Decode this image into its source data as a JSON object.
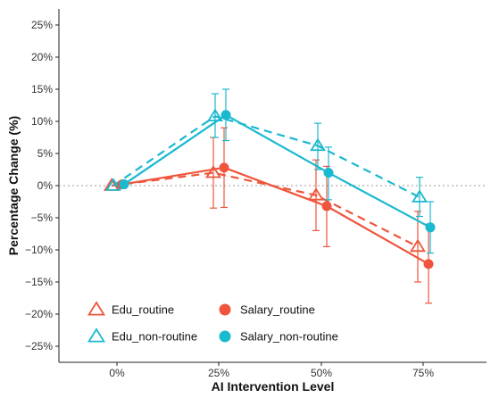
{
  "chart_data": {
    "type": "line",
    "xlabel": "AI Intervention Level",
    "ylabel": "Percentage Change (%)",
    "categories": [
      "0%",
      "25%",
      "50%",
      "75%"
    ],
    "y_ticks": [
      {
        "value": 25,
        "label": "25%"
      },
      {
        "value": 20,
        "label": "20%"
      },
      {
        "value": 15,
        "label": "15%"
      },
      {
        "value": 10,
        "label": "10%"
      },
      {
        "value": 5,
        "label": "5%"
      },
      {
        "value": 0,
        "label": "0%"
      },
      {
        "value": -5,
        "label": "−5%"
      },
      {
        "value": -10,
        "label": "−10%"
      },
      {
        "value": -15,
        "label": "−15%"
      },
      {
        "value": -20,
        "label": "−20%"
      },
      {
        "value": -25,
        "label": "−25%"
      }
    ],
    "ylim": [
      -27.5,
      27.5
    ],
    "grid": false,
    "reference_line": 0,
    "legend_position": "bottom-left",
    "series": [
      {
        "name": "Edu_routine",
        "color": "#ef553c",
        "marker": "open-triangle",
        "line": "dashed",
        "values": [
          0,
          2.0,
          -1.5,
          -9.5
        ],
        "error_low": [
          0,
          -3.5,
          -7.0,
          -15.0
        ],
        "error_high": [
          0,
          7.5,
          4.0,
          -4.0
        ]
      },
      {
        "name": "Edu_non-routine",
        "color": "#1ab9cf",
        "marker": "open-triangle",
        "line": "dashed",
        "values": [
          0,
          10.8,
          6.2,
          -1.8
        ],
        "error_low": [
          0,
          7.5,
          2.5,
          -4.8
        ],
        "error_high": [
          0,
          14.3,
          9.7,
          1.3
        ]
      },
      {
        "name": "Salary_routine",
        "color": "#ef553c",
        "marker": "filled-circle",
        "line": "solid",
        "values": [
          0.2,
          2.8,
          -3.2,
          -12.2
        ],
        "error_low": [
          0.2,
          -3.4,
          -9.5,
          -18.3
        ],
        "error_high": [
          0.2,
          9.0,
          3.0,
          -6.0
        ]
      },
      {
        "name": "Salary_non-routine",
        "color": "#1ab9cf",
        "marker": "filled-circle",
        "line": "solid",
        "values": [
          0.2,
          11.0,
          2.0,
          -6.5
        ],
        "error_low": [
          0.2,
          7.0,
          -2.2,
          -10.5
        ],
        "error_high": [
          0.2,
          15.0,
          6.0,
          -2.5
        ]
      }
    ]
  }
}
